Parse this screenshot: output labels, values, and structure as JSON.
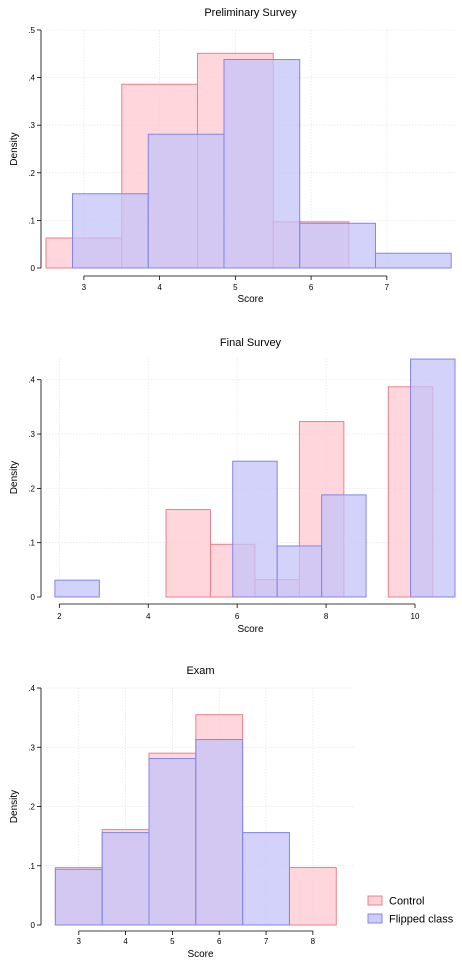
{
  "colors": {
    "control_fill": "#ffc8cf",
    "control_stroke": "#ef7f8c",
    "flipped_fill": "#c3c3f8",
    "flipped_stroke": "#8484ee",
    "grid": "#e6e6e6",
    "axis": "#000000"
  },
  "legend": {
    "placement": "bottom-right",
    "items": [
      {
        "label": "Control",
        "series": "control"
      },
      {
        "label": "Flipped class",
        "series": "flipped"
      }
    ]
  },
  "chart_data": [
    {
      "type": "bar",
      "title": "Preliminary Survey",
      "xlabel": "Score",
      "ylabel": "Density",
      "xlim": [
        2.5,
        7.9
      ],
      "ylim": [
        0,
        0.5
      ],
      "xticks": [
        3,
        4,
        5,
        6,
        7
      ],
      "yticks": [
        0,
        0.1,
        0.2,
        0.3,
        0.4,
        0.5
      ],
      "ytick_labels": [
        "0",
        ".1",
        ".2",
        ".3",
        ".4",
        ".5"
      ],
      "grid": true,
      "series": [
        {
          "key": "control",
          "bins": [
            {
              "x0": 2.5,
              "x1": 3.5,
              "density": 0.063
            },
            {
              "x0": 3.5,
              "x1": 4.5,
              "density": 0.386
            },
            {
              "x0": 4.5,
              "x1": 5.5,
              "density": 0.451
            },
            {
              "x0": 5.5,
              "x1": 6.5,
              "density": 0.097
            }
          ]
        },
        {
          "key": "flipped",
          "bins": [
            {
              "x0": 2.85,
              "x1": 3.85,
              "density": 0.156
            },
            {
              "x0": 3.85,
              "x1": 4.85,
              "density": 0.281
            },
            {
              "x0": 4.85,
              "x1": 5.85,
              "density": 0.438
            },
            {
              "x0": 5.85,
              "x1": 6.85,
              "density": 0.094
            },
            {
              "x0": 6.85,
              "x1": 7.85,
              "density": 0.031
            }
          ]
        }
      ]
    },
    {
      "type": "bar",
      "title": "Final Survey",
      "xlabel": "Score",
      "ylabel": "Density",
      "xlim": [
        1.7,
        10.9
      ],
      "ylim": [
        0,
        0.44
      ],
      "xticks": [
        2,
        4,
        6,
        8,
        10
      ],
      "yticks": [
        0,
        0.1,
        0.2,
        0.3,
        0.4
      ],
      "ytick_labels": [
        "0",
        ".1",
        ".2",
        ".3",
        ".4"
      ],
      "grid": true,
      "series": [
        {
          "key": "control",
          "bins": [
            {
              "x0": 4.4,
              "x1": 5.4,
              "density": 0.161
            },
            {
              "x0": 5.4,
              "x1": 6.4,
              "density": 0.097
            },
            {
              "x0": 6.4,
              "x1": 7.4,
              "density": 0.032
            },
            {
              "x0": 7.4,
              "x1": 8.4,
              "density": 0.323
            },
            {
              "x0": 9.4,
              "x1": 10.4,
              "density": 0.387
            }
          ]
        },
        {
          "key": "flipped",
          "bins": [
            {
              "x0": 1.9,
              "x1": 2.9,
              "density": 0.031
            },
            {
              "x0": 5.9,
              "x1": 6.9,
              "density": 0.25
            },
            {
              "x0": 6.9,
              "x1": 7.9,
              "density": 0.094
            },
            {
              "x0": 7.9,
              "x1": 8.9,
              "density": 0.188
            },
            {
              "x0": 9.9,
              "x1": 10.9,
              "density": 0.438
            }
          ]
        }
      ]
    },
    {
      "type": "bar",
      "title": "Exam",
      "xlabel": "Score",
      "ylabel": "Density",
      "xlim": [
        2.3,
        8.9
      ],
      "ylim": [
        0,
        0.4
      ],
      "xticks": [
        3,
        4,
        5,
        6,
        7,
        8
      ],
      "yticks": [
        0,
        0.1,
        0.2,
        0.3,
        0.4
      ],
      "ytick_labels": [
        "0",
        ".1",
        ".2",
        ".3",
        ".4"
      ],
      "grid": true,
      "series": [
        {
          "key": "control",
          "bins": [
            {
              "x0": 2.5,
              "x1": 3.5,
              "density": 0.097
            },
            {
              "x0": 3.5,
              "x1": 4.5,
              "density": 0.161
            },
            {
              "x0": 4.5,
              "x1": 5.5,
              "density": 0.29
            },
            {
              "x0": 5.5,
              "x1": 6.5,
              "density": 0.355
            },
            {
              "x0": 7.5,
              "x1": 8.5,
              "density": 0.097
            }
          ]
        },
        {
          "key": "flipped",
          "bins": [
            {
              "x0": 2.5,
              "x1": 3.5,
              "density": 0.094
            },
            {
              "x0": 3.5,
              "x1": 4.5,
              "density": 0.156
            },
            {
              "x0": 4.5,
              "x1": 5.5,
              "density": 0.281
            },
            {
              "x0": 5.5,
              "x1": 6.5,
              "density": 0.313
            },
            {
              "x0": 6.5,
              "x1": 7.5,
              "density": 0.156
            }
          ]
        }
      ]
    }
  ]
}
